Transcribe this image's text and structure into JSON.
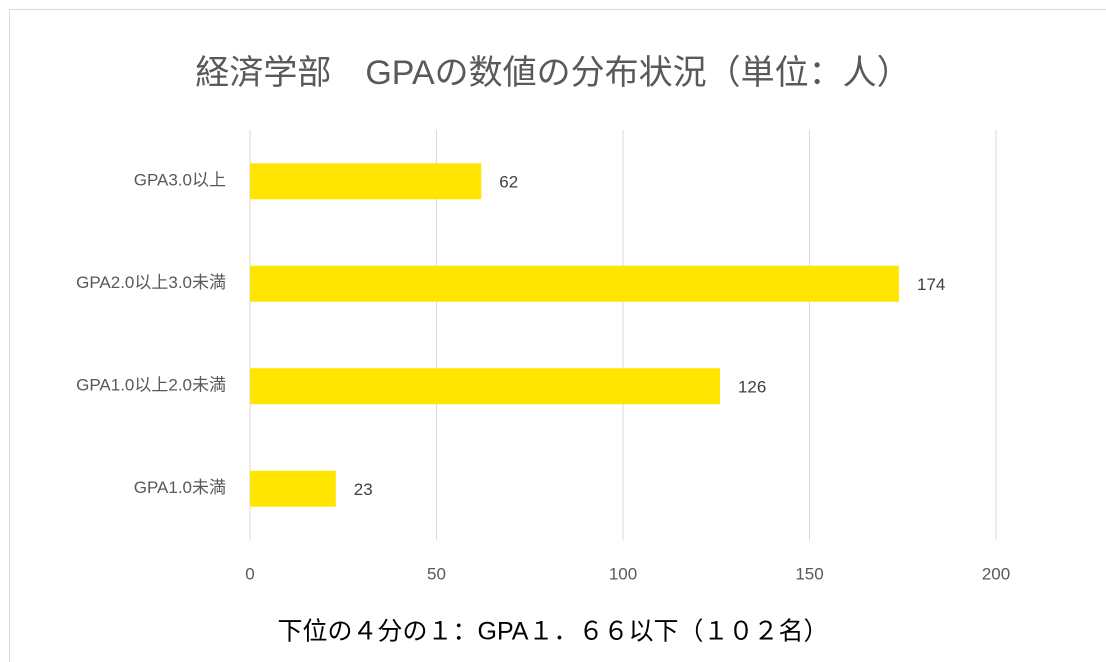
{
  "chart_data": {
    "type": "bar",
    "orientation": "horizontal",
    "title": "経済学部　GPAの数値の分布状況（単位：人）",
    "x_label": "下位の４分の１：GPA１．６６以下（１０２名）",
    "categories": [
      "GPA3.0以上",
      "GPA2.0以上3.0未満",
      "GPA1.0以上2.0未満",
      "GPA1.0未満"
    ],
    "values": [
      62,
      174,
      126,
      23
    ],
    "color": "#ffe500",
    "xlim": [
      0,
      200
    ],
    "xticks": [
      0,
      50,
      100,
      150,
      200
    ],
    "grid": true
  }
}
